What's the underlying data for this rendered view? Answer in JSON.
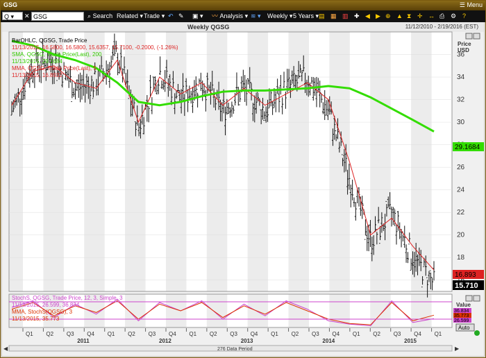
{
  "window": {
    "title": "GSG",
    "menu_label": "Menu"
  },
  "toolbar": {
    "symbol_type": "Q",
    "symbol_value": "GSG",
    "search_label": "Search",
    "related_label": "Related",
    "trade_label": "Trade",
    "analysis_label": "Analysis",
    "period_label": "Weekly",
    "range_label": "5 Years"
  },
  "chart_header": {
    "title": "Weekly QGSG",
    "date_range": "11/12/2010 - 2/19/2016 (EST)"
  },
  "legend": {
    "bar_title": "BarOHLC, QGSG, Trade Price",
    "bar_values": "11/13/2015, 16.5800, 16.5800, 15.6357, 15.7100, -0.2000, (-1.26%)",
    "sma_title": "SMA, QGSG, Trade Price(Last), 200",
    "sma_values": "11/13/2015, 29.1684",
    "mma_title": "MMA, QGSG, Trade Price(Last), 5",
    "mma_values": "11/13/2015, 16.8932",
    "stoch_title": "StochS, QGSG, Trade Price, 12, 3, Simple, 3",
    "stoch_values": "11/13/2015, 26.599, 36.834",
    "stoch_mma_title": "MMA, StochS(QGSG), 3",
    "stoch_mma_values": "11/13/2015, 35.773"
  },
  "price_axis": {
    "label_line1": "Price",
    "label_line2": "USD",
    "ticks": [
      "36",
      "34",
      "32",
      "30",
      "28",
      "26",
      "24",
      "22",
      "20",
      "18",
      "16"
    ]
  },
  "value_axis": {
    "label": "Value",
    "auto_label": "Auto",
    "tag_values": [
      "36.834",
      "35.773",
      "26.599"
    ]
  },
  "tags": {
    "sma": "29.1684",
    "mma": "16.893",
    "last": "15.710"
  },
  "colors": {
    "sma": "#33dd00",
    "mma": "#dd2222",
    "bars": "#111111",
    "stoch": "#cc44cc",
    "stoch_mma": "#dd3300",
    "last_tag": "#000000"
  },
  "time_axis": {
    "quarters": [
      "Q1",
      "Q2",
      "Q3",
      "Q4",
      "Q1",
      "Q2",
      "Q3",
      "Q4",
      "Q1",
      "Q2",
      "Q3",
      "Q4",
      "Q1",
      "Q2",
      "Q3",
      "Q4",
      "Q1",
      "Q2",
      "Q3",
      "Q4",
      "Q1"
    ],
    "years": [
      "2011",
      "2012",
      "2013",
      "2014",
      "2015"
    ]
  },
  "footer": {
    "period_label": "276 Data Period"
  },
  "chart_data": {
    "type": "ohlc",
    "title": "Weekly QGSG",
    "ylim": [
      15,
      38
    ],
    "x_range": [
      "11/12/2010",
      "2/19/2016"
    ],
    "price_series": [
      {
        "name": "SMA, QGSG, Trade Price(Last), 200",
        "x": [
          "2010-11",
          "2011-02",
          "2011-05",
          "2011-08",
          "2011-11",
          "2012-02",
          "2012-05",
          "2012-08",
          "2012-11",
          "2013-02",
          "2013-05",
          "2013-08",
          "2013-11",
          "2014-02",
          "2014-05",
          "2014-08",
          "2014-11",
          "2015-02",
          "2015-05",
          "2015-08",
          "2015-11"
        ],
        "values": [
          37.2,
          36.8,
          36.0,
          35.5,
          34.8,
          33.5,
          31.8,
          31.5,
          31.8,
          32.3,
          32.7,
          32.8,
          32.8,
          32.9,
          33.0,
          33.2,
          33.0,
          32.2,
          31.2,
          30.2,
          29.1684
        ]
      },
      {
        "name": "MMA, QGSG, Trade Price(Last), 5",
        "x": [
          "2010-11",
          "2011-02",
          "2011-05",
          "2011-08",
          "2011-11",
          "2012-02",
          "2012-05",
          "2012-08",
          "2012-11",
          "2013-02",
          "2013-05",
          "2013-08",
          "2013-11",
          "2014-02",
          "2014-05",
          "2014-08",
          "2014-11",
          "2015-02",
          "2015-05",
          "2015-08",
          "2015-11"
        ],
        "values": [
          31.5,
          34.5,
          35.0,
          33.5,
          33.0,
          35.5,
          30.0,
          34.0,
          32.5,
          33.5,
          31.5,
          33.0,
          31.5,
          32.5,
          33.5,
          32.0,
          26.5,
          20.0,
          21.5,
          19.0,
          16.8932
        ]
      }
    ],
    "ohlc_approx_close": {
      "x": [
        "2010-11",
        "2011-02",
        "2011-05",
        "2011-08",
        "2011-11",
        "2012-02",
        "2012-05",
        "2012-08",
        "2012-11",
        "2013-02",
        "2013-05",
        "2013-08",
        "2013-11",
        "2014-02",
        "2014-05",
        "2014-08",
        "2014-11",
        "2015-02",
        "2015-05",
        "2015-08",
        "2015-11"
      ],
      "values": [
        31.0,
        35.0,
        35.5,
        33.0,
        33.5,
        36.0,
        29.5,
        34.5,
        32.0,
        33.5,
        31.0,
        33.0,
        31.0,
        33.0,
        34.0,
        31.0,
        25.0,
        19.5,
        22.0,
        18.0,
        15.71
      ]
    },
    "stochastic": {
      "ylim": [
        0,
        100
      ],
      "series": [
        {
          "name": "StochS %K",
          "values": [
            60,
            80,
            30,
            70,
            40,
            85,
            20,
            75,
            50,
            80,
            25,
            70,
            35,
            80,
            55,
            20,
            10,
            5,
            80,
            15,
            26.599
          ]
        },
        {
          "name": "StochS %D",
          "values": [
            55,
            75,
            35,
            65,
            45,
            80,
            25,
            70,
            50,
            75,
            30,
            65,
            40,
            75,
            50,
            25,
            12,
            8,
            75,
            20,
            36.834
          ]
        }
      ]
    }
  }
}
